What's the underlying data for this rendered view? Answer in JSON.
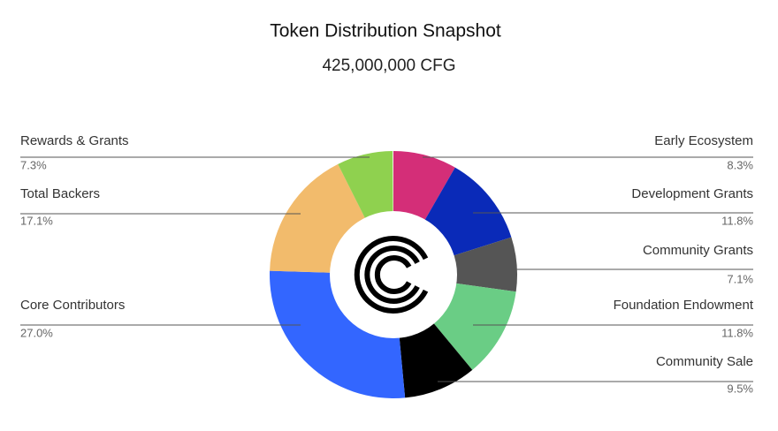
{
  "chart_data": {
    "type": "donut",
    "title": "Token Distribution Snapshot",
    "subtitle": "425,000,000 CFG",
    "categories": [
      "Early Ecosystem",
      "Development Grants",
      "Community Grants",
      "Foundation Endowment",
      "Community Sale",
      "Core Contributors",
      "Total Backers",
      "Rewards & Grants"
    ],
    "values": [
      8.3,
      11.8,
      7.1,
      11.8,
      9.5,
      27.0,
      17.1,
      7.3
    ],
    "value_labels": [
      "8.3%",
      "11.8%",
      "7.1%",
      "11.8%",
      "9.5%",
      "27.0%",
      "17.1%",
      "7.3%"
    ],
    "colors": [
      "#d42e78",
      "#0a2ab8",
      "#555555",
      "#6acd85",
      "#000000",
      "#3366ff",
      "#f2bb6c",
      "#8fd14f"
    ]
  }
}
